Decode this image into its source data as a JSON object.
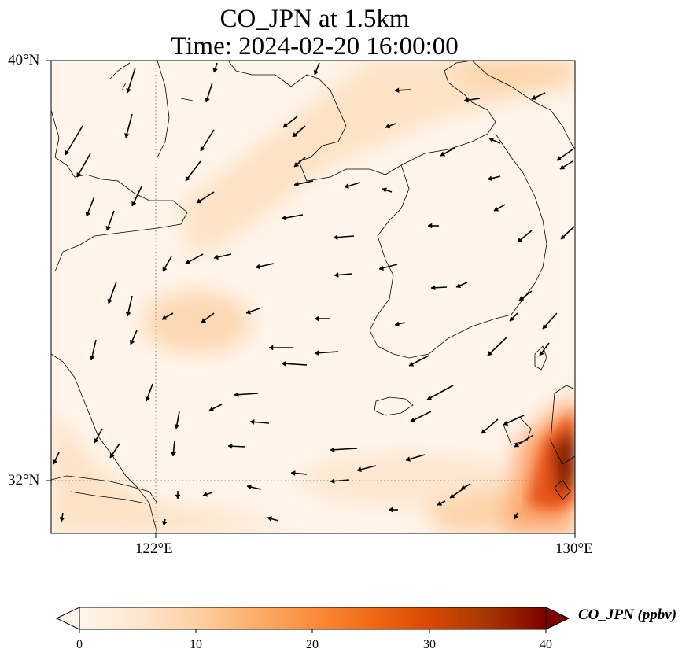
{
  "title": {
    "line1": "CO_JPN at 1.5km",
    "line2": "Time: 2024-02-20 16:00:00"
  },
  "map": {
    "variable": "CO_JPN",
    "level": "1.5km",
    "lon_range": [
      121,
      130
    ],
    "lat_range": [
      31,
      40
    ],
    "lat_ticks": [
      {
        "value": 40,
        "label": "40°N"
      },
      {
        "value": 32,
        "label": "32°N"
      }
    ],
    "lon_ticks": [
      {
        "value": 122,
        "label": "122°E"
      },
      {
        "value": 130,
        "label": "130°E"
      }
    ],
    "gridlines": "dotted at 122°E and 32°N"
  },
  "colorbar": {
    "label": "CO_JPN (ppbv)",
    "min": 0,
    "max": 40,
    "ticks": [
      "0",
      "10",
      "20",
      "30",
      "40"
    ],
    "colormap": [
      "#fff5eb",
      "#fee6ce",
      "#fdd0a2",
      "#fdae6b",
      "#fd8d3c",
      "#f16913",
      "#d94801",
      "#a63603",
      "#7f2704"
    ],
    "extend": "both"
  }
}
